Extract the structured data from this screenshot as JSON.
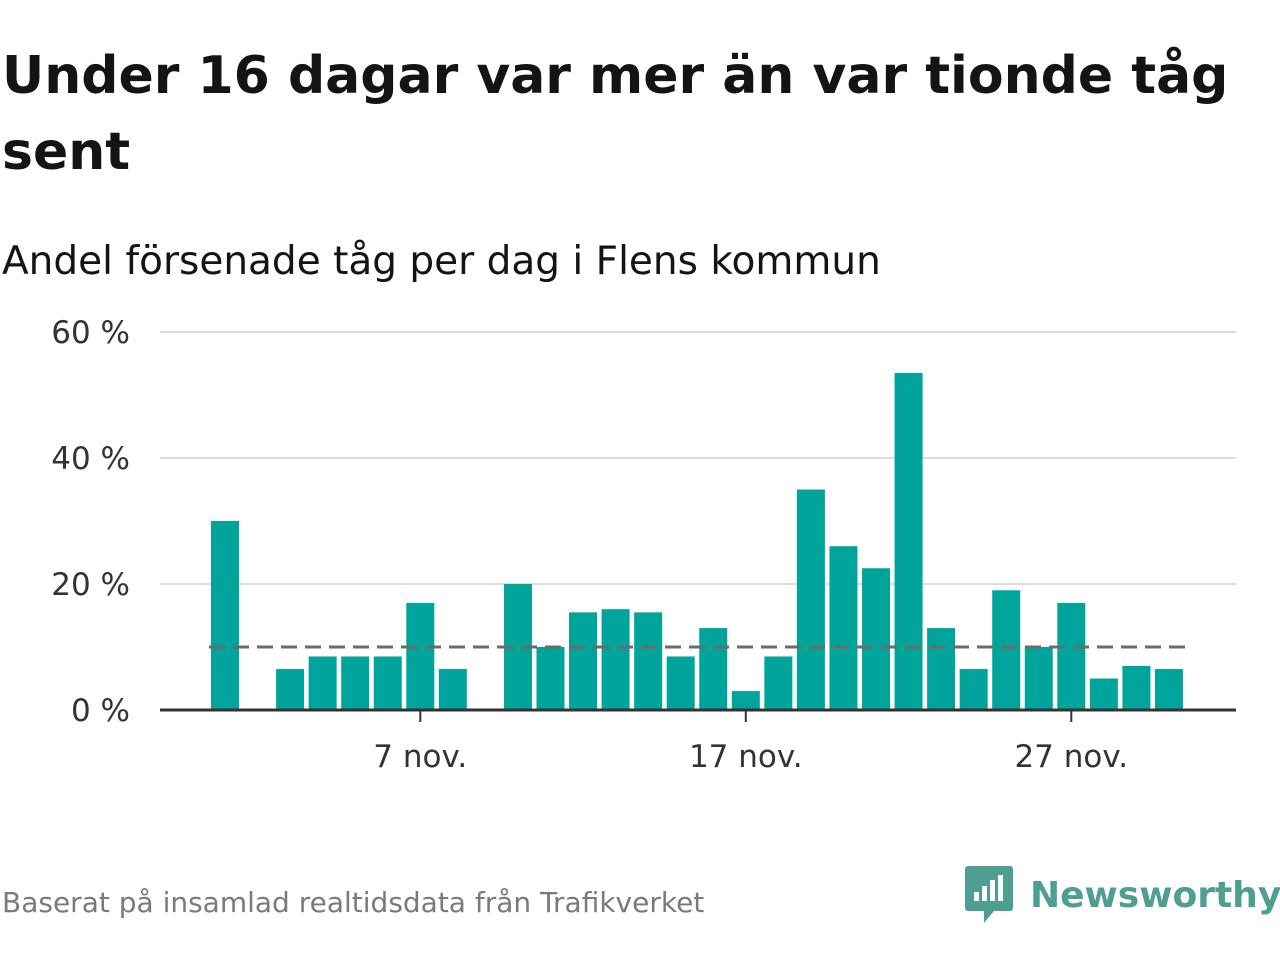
{
  "header": {
    "title": "Under 16 dagar var mer än var tionde tåg sent",
    "subtitle": "Andel försenade tåg per dag i Flens kommun"
  },
  "footer": {
    "source": "Baserat på insamlad realtidsdata från Trafikverket",
    "brand": "Newsworthy",
    "brand_icon": "newsworthy-logo-icon"
  },
  "colors": {
    "bar": "#00a49a",
    "reference_line": "#6b6b6b",
    "grid": "#dcdcdc",
    "axis": "#333333",
    "brand": "#4e9e91"
  },
  "chart_data": {
    "type": "bar",
    "title": "Andel försenade tåg per dag i Flens kommun",
    "xlabel": "",
    "ylabel": "",
    "ylim": [
      0,
      60
    ],
    "yticks": [
      0,
      20,
      40,
      60
    ],
    "ytick_labels": [
      "0 %",
      "20 %",
      "40 %",
      "60 %"
    ],
    "xtick_labels": [
      "7 nov.",
      "17 nov.",
      "27 nov."
    ],
    "grid": true,
    "unit": "%",
    "categories": [
      "1 nov.",
      "2 nov.",
      "3 nov.",
      "4 nov.",
      "5 nov.",
      "6 nov.",
      "7 nov.",
      "8 nov.",
      "9 nov.",
      "10 nov.",
      "11 nov.",
      "12 nov.",
      "13 nov.",
      "14 nov.",
      "15 nov.",
      "16 nov.",
      "17 nov.",
      "18 nov.",
      "19 nov.",
      "20 nov.",
      "21 nov.",
      "22 nov.",
      "23 nov.",
      "24 nov.",
      "25 nov.",
      "26 nov.",
      "27 nov.",
      "28 nov.",
      "29 nov.",
      "30 nov."
    ],
    "values": [
      30,
      null,
      6.5,
      8.5,
      8.5,
      8.5,
      17,
      6.5,
      null,
      20,
      10,
      15.5,
      16,
      15.5,
      8.5,
      13,
      3,
      8.5,
      35,
      26,
      22.5,
      53.5,
      13,
      6.5,
      19,
      10,
      17,
      5,
      7,
      6.5
    ],
    "reference_line": {
      "value": 10,
      "style": "dashed"
    }
  }
}
